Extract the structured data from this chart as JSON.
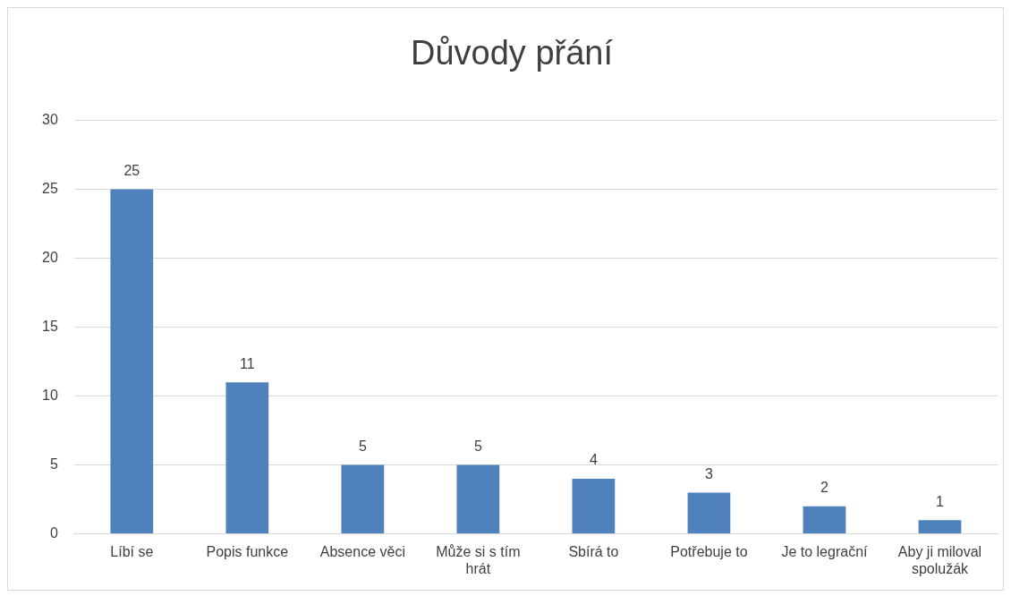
{
  "chart_data": {
    "type": "bar",
    "title": "Důvody přání",
    "categories": [
      "Líbí se",
      "Popis funkce",
      "Absence věci",
      "Může si s tím hrát",
      "Sbírá to",
      "Potřebuje to",
      "Je to legrační",
      "Aby ji miloval spolužák"
    ],
    "values": [
      25,
      11,
      5,
      5,
      4,
      3,
      2,
      1
    ],
    "color": "#4f81bd",
    "ylim": [
      0,
      30
    ],
    "yticks": [
      0,
      5,
      10,
      15,
      20,
      25,
      30
    ],
    "grid": "y",
    "data_labels": true,
    "legend": false
  }
}
